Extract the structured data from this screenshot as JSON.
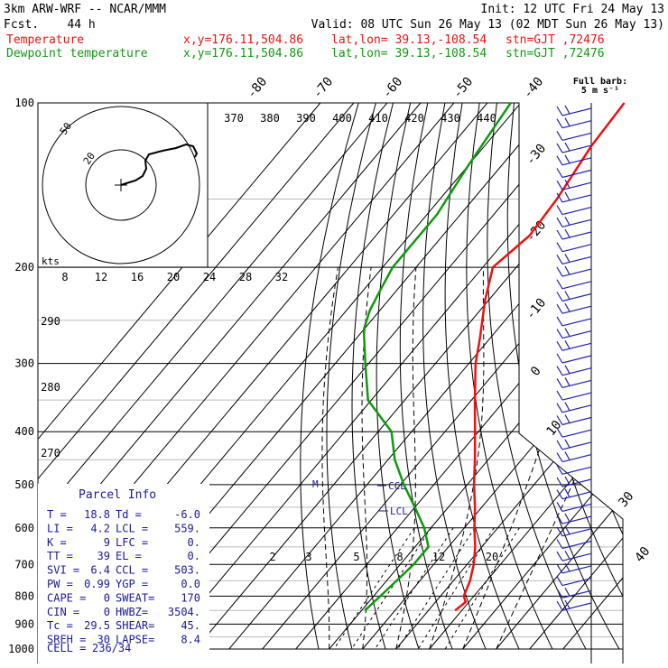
{
  "header": {
    "model": "3km ARW-WRF -- NCAR/MMM",
    "init": "Init: 12 UTC Fri 24 May 13",
    "fcst": "Fcst.    44 h",
    "valid": "Valid: 08 UTC Sun 26 May 13 (02 MDT Sun 26 May 13)",
    "temp_line": {
      "label": "Temperature",
      "xy": "x,y=176.11,504.86",
      "latlon": "lat,lon= 39.13,-108.54",
      "stn": "stn=GJT ,72476"
    },
    "dew_line": {
      "label": "Dewpoint temperature",
      "xy": "x,y=176.11,504.86",
      "latlon": "lat,lon= 39.13,-108.54",
      "stn": "stn=GJT ,72476"
    },
    "barb_note_1": "Full barb:",
    "barb_note_2": "5 m s⁻¹"
  },
  "colors": {
    "temperature": "#ee1111",
    "dewpoint": "#119911",
    "winds": "#2222aa",
    "parcel_text": "#1a1a99"
  },
  "pressure_labels": [
    "100",
    "200",
    "300",
    "400",
    "500",
    "600",
    "700",
    "800",
    "900",
    "1000"
  ],
  "isotherm_labels": [
    "-80",
    "-70",
    "-60",
    "-50",
    "-40",
    "-30",
    "-20",
    "-10",
    "0",
    "10",
    "30",
    "40"
  ],
  "theta_labels": [
    "370",
    "380",
    "390",
    "400",
    "410",
    "420",
    "430",
    "440"
  ],
  "theta_side_labels": [
    "290",
    "280",
    "270"
  ],
  "mixing_ratio_labels": [
    "2",
    "3",
    "5",
    "8",
    "12",
    "20"
  ],
  "hodograph": {
    "units": "kts",
    "ring_labels": [
      "50",
      "20"
    ],
    "speed_axis": [
      "8",
      "12",
      "16",
      "20",
      "24",
      "28",
      "32"
    ]
  },
  "levels": {
    "lcl_label": "LCL",
    "ccl_label": "CCL",
    "m_label": "M"
  },
  "parcel_info": {
    "title": "Parcel Info",
    "rows": [
      [
        "T   =",
        "18.8",
        "Td =",
        "-6.0"
      ],
      [
        "LI  =",
        "4.2",
        "LCL =",
        "559."
      ],
      [
        "K   =",
        "9",
        "LFC =",
        "0."
      ],
      [
        "TT  =",
        "39",
        "EL  =",
        "0."
      ],
      [
        "SVI =",
        "6.4",
        "CCL =",
        "503."
      ],
      [
        "PW  =",
        "0.99",
        "YGP =",
        "0.0"
      ],
      [
        "CAPE =",
        "0",
        "SWEAT=",
        "170"
      ],
      [
        "CIN  =",
        "0",
        "HWBZ=",
        "3504."
      ],
      [
        "Tc  =",
        "29.5",
        "SHEAR=",
        "45."
      ],
      [
        "SREH =",
        "30",
        "LAPSE=",
        "8.4"
      ]
    ],
    "cell_label": "CELL =",
    "cell_value": "236/34"
  },
  "chart_data": {
    "type": "line",
    "title": "",
    "xlabel": "",
    "ylabel": "",
    "pressure_axis_hpa": [
      100,
      1000
    ],
    "log_pressure": true,
    "series": [
      {
        "name": "Temperature",
        "points_p_hpa_t_c": [
          [
            100,
            -59
          ],
          [
            120,
            -58
          ],
          [
            150,
            -55
          ],
          [
            175,
            -54
          ],
          [
            200,
            -57
          ],
          [
            230,
            -51
          ],
          [
            270,
            -43
          ],
          [
            300,
            -38
          ],
          [
            350,
            -29
          ],
          [
            400,
            -21
          ],
          [
            450,
            -14
          ],
          [
            500,
            -8
          ],
          [
            550,
            -2
          ],
          [
            600,
            3
          ],
          [
            650,
            8
          ],
          [
            700,
            12
          ],
          [
            750,
            15
          ],
          [
            800,
            17
          ],
          [
            820,
            19
          ],
          [
            850,
            18
          ]
        ]
      },
      {
        "name": "Dewpoint temperature",
        "points_p_hpa_t_c": [
          [
            100,
            -93
          ],
          [
            130,
            -90
          ],
          [
            160,
            -87
          ],
          [
            200,
            -87
          ],
          [
            220,
            -85
          ],
          [
            240,
            -83
          ],
          [
            260,
            -80
          ],
          [
            300,
            -71
          ],
          [
            350,
            -61
          ],
          [
            400,
            -46
          ],
          [
            450,
            -38
          ],
          [
            500,
            -29
          ],
          [
            550,
            -20
          ],
          [
            600,
            -12
          ],
          [
            650,
            -6
          ],
          [
            700,
            -6
          ],
          [
            750,
            -7
          ],
          [
            800,
            -8
          ],
          [
            850,
            -9
          ]
        ]
      }
    ]
  }
}
